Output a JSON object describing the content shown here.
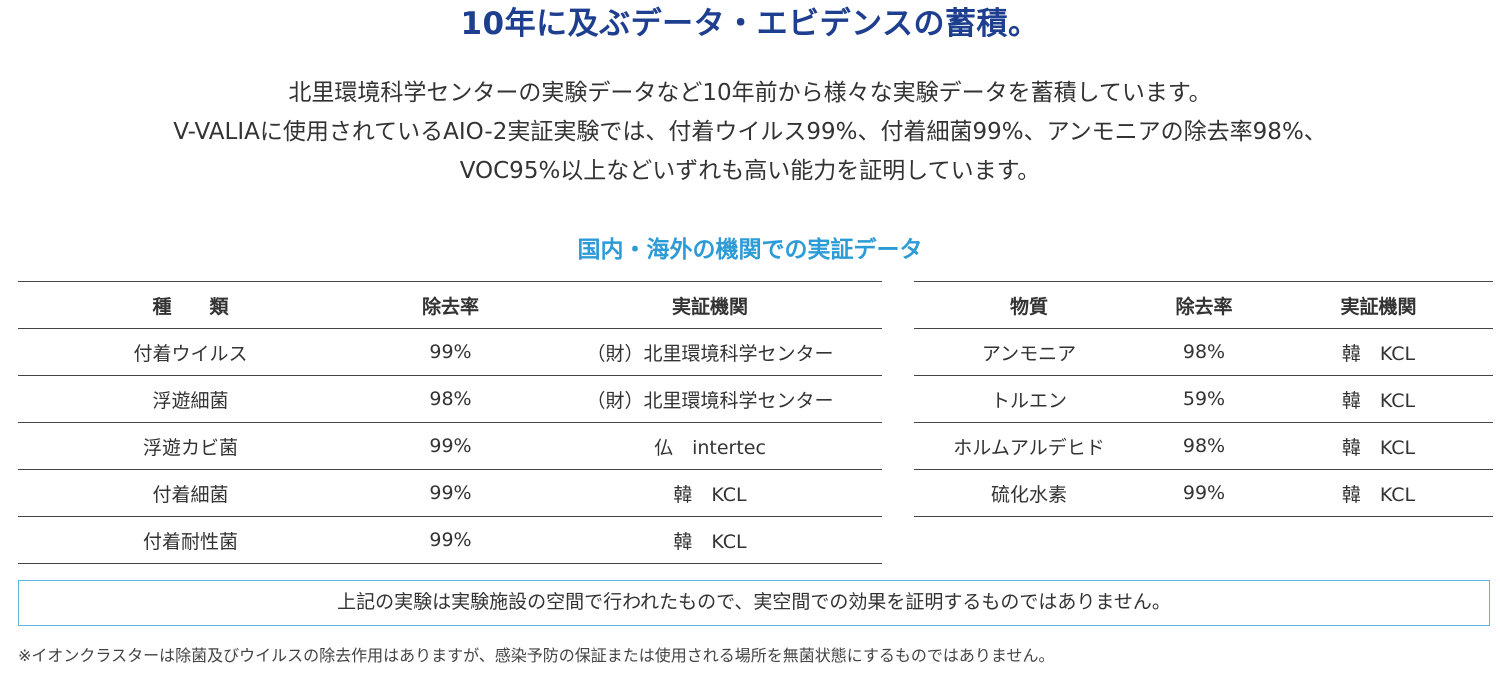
{
  "headline": "10年に及ぶデータ・エビデンスの蓄積。",
  "intro": {
    "line1": "北里環境科学センターの実験データなど10年前から様々な実験データを蓄積しています。",
    "line2": "V-VALIAに使用されているAIO-2実証実験では、付着ウイルス99%、付着細菌99%、アンモニアの除去率98%、",
    "line3": "VOC95%以上などいずれも高い能力を証明しています。"
  },
  "section_title": "国内・海外の機関での実証データ",
  "table_left": {
    "headers": [
      "種　　類",
      "除去率",
      "実証機関"
    ],
    "rows": [
      [
        "付着ウイルス",
        "99%",
        "（財）北里環境科学センター"
      ],
      [
        "浮遊細菌",
        "98%",
        "（財）北里環境科学センター"
      ],
      [
        "浮遊カビ菌",
        "99%",
        "仏　intertec"
      ],
      [
        "付着細菌",
        "99%",
        "韓　KCL"
      ],
      [
        "付着耐性菌",
        "99%",
        "韓　KCL"
      ]
    ]
  },
  "table_right": {
    "headers": [
      "物質",
      "除去率",
      "実証機関"
    ],
    "rows": [
      [
        "アンモニア",
        "98%",
        "韓　KCL"
      ],
      [
        "トルエン",
        "59%",
        "韓　KCL"
      ],
      [
        "ホルムアルデヒド",
        "98%",
        "韓　KCL"
      ],
      [
        "硫化水素",
        "99%",
        "韓　KCL"
      ]
    ]
  },
  "notice": "上記の実験は実験施設の空間で行われたもので、実空間での効果を証明するものではありません。",
  "footnote": "※イオンクラスターは除菌及びウイルスの除去作用はありますが、感染予防の保証または使用される場所を無菌状態にするものではありません。",
  "colors": {
    "headline": "#1e3f8f",
    "section_title": "#2c9bd6",
    "notice_border": "#5bb5dc"
  }
}
